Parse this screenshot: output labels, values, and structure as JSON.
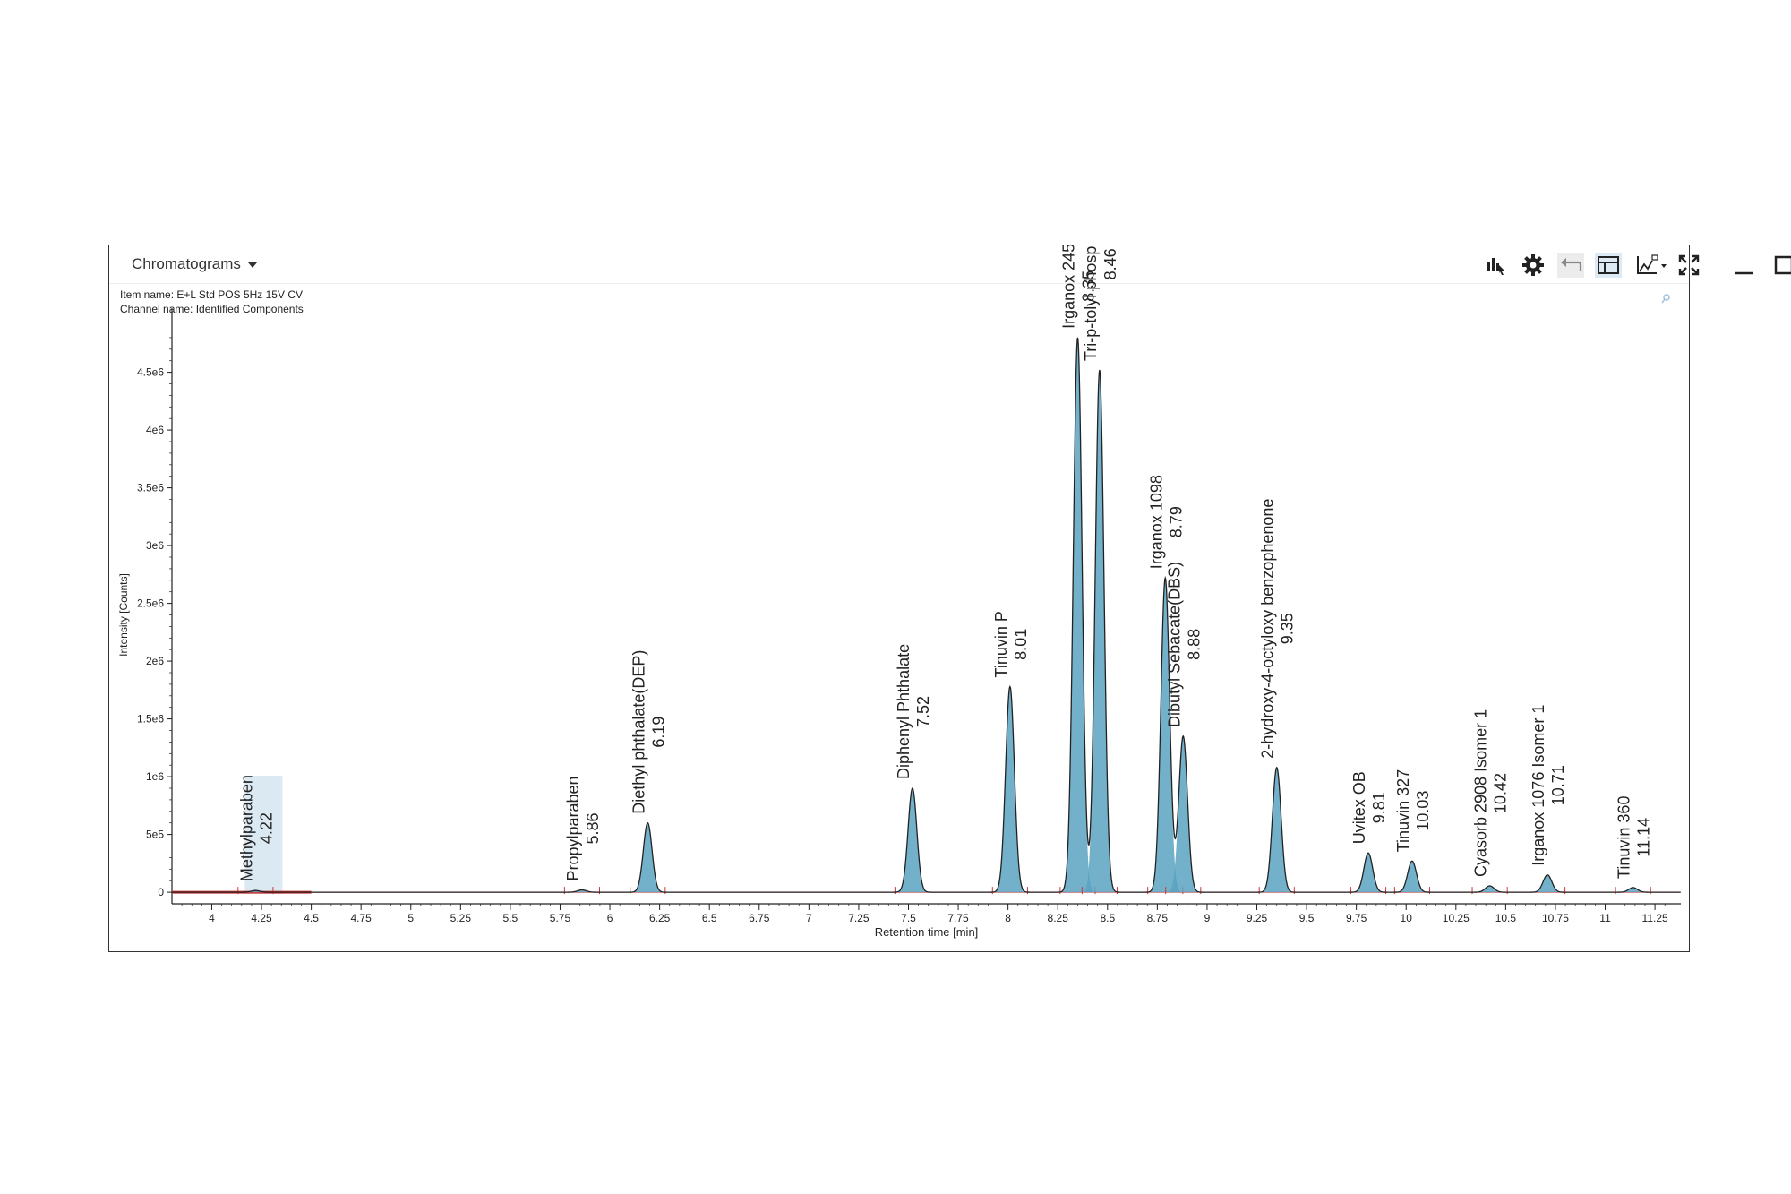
{
  "panel": {
    "title": "Chromatograms",
    "item_name": "Item name: E+L Std POS 5Hz 15V CV",
    "channel_name": "Channel name: Identified Components",
    "toolbar": {
      "icons": [
        "chart-select-icon",
        "gear-icon",
        "undo-icon",
        "table-layout-icon",
        "chart-options-icon",
        "fullscreen-icon",
        "minimize-icon",
        "maximize-icon"
      ]
    }
  },
  "colors": {
    "peak_fill": "#5ba3c2",
    "trace": "#222222",
    "baseline": "#cc3333",
    "highlight": "#dbe9f3"
  },
  "chart_data": {
    "type": "line",
    "xlabel": "Retention time [min]",
    "ylabel": "Intensity [Counts]",
    "xlim": [
      3.8,
      11.38
    ],
    "ylim": [
      -100000,
      4900000
    ],
    "x_ticks": [
      4,
      4.25,
      4.5,
      4.75,
      5,
      5.25,
      5.5,
      5.75,
      6,
      6.25,
      6.5,
      6.75,
      7,
      7.25,
      7.5,
      7.75,
      8,
      8.25,
      8.5,
      8.75,
      9,
      9.25,
      9.5,
      9.75,
      10,
      10.25,
      10.5,
      10.75,
      11,
      11.25
    ],
    "x_tick_labels": [
      "4",
      "4.25",
      "4.5",
      "4.75",
      "5",
      "5.25",
      "5.5",
      "5.75",
      "6",
      "6.25",
      "6.5",
      "6.75",
      "7",
      "7.25",
      "7.5",
      "7.75",
      "8",
      "8.25",
      "8.5",
      "8.75",
      "9",
      "9.25",
      "9.5",
      "9.75",
      "10",
      "10.25",
      "10.5",
      "10.75",
      "11",
      "11.25"
    ],
    "y_ticks": [
      0,
      500000,
      1000000,
      1500000,
      2000000,
      2500000,
      3000000,
      3500000,
      4000000,
      4500000
    ],
    "y_tick_labels": [
      "0",
      "5e5",
      "1e6",
      "1.5e6",
      "2e6",
      "2.5e6",
      "3e6",
      "3.5e6",
      "4e6",
      "4.5e6"
    ],
    "peaks": [
      {
        "name": "Methylparaben",
        "rt": 4.22,
        "rt_label": "4.22",
        "height": 15000,
        "highlight": true
      },
      {
        "name": "Propylparaben",
        "rt": 5.86,
        "rt_label": "5.86",
        "height": 20000
      },
      {
        "name": "Diethyl phthalate(DEP)",
        "rt": 6.19,
        "rt_label": "6.19",
        "height": 600000
      },
      {
        "name": "Diphenyl Phthalate",
        "rt": 7.52,
        "rt_label": "7.52",
        "height": 900000
      },
      {
        "name": "Tinuvin P",
        "rt": 8.01,
        "rt_label": "8.01",
        "height": 1780000
      },
      {
        "name": "Irganox 245",
        "rt": 8.35,
        "rt_label": "8.35",
        "height": 4800000
      },
      {
        "name": "Tri-p-tolyl phosphate (TCP)",
        "rt": 8.46,
        "rt_label": "8.46",
        "height": 4520000
      },
      {
        "name": "Irganox 1098",
        "rt": 8.79,
        "rt_label": "8.79",
        "height": 2720000
      },
      {
        "name": "Dibutyl Sebacate(DBS)",
        "rt": 8.88,
        "rt_label": "8.88",
        "height": 1350000
      },
      {
        "name": "2-hydroxy-4-octyloxy benzophenone",
        "rt": 9.35,
        "rt_label": "9.35",
        "height": 1080000
      },
      {
        "name": "Uvitex OB",
        "rt": 9.81,
        "rt_label": "9.81",
        "height": 340000
      },
      {
        "name": "Tinuvin 327",
        "rt": 10.03,
        "rt_label": "10.03",
        "height": 270000
      },
      {
        "name": "Cyasorb 2908 Isomer 1",
        "rt": 10.42,
        "rt_label": "10.42",
        "height": 55000
      },
      {
        "name": "Irganox 1076 Isomer 1",
        "rt": 10.71,
        "rt_label": "10.71",
        "height": 150000
      },
      {
        "name": "Tinuvin 360",
        "rt": 11.14,
        "rt_label": "11.14",
        "height": 40000
      }
    ]
  }
}
